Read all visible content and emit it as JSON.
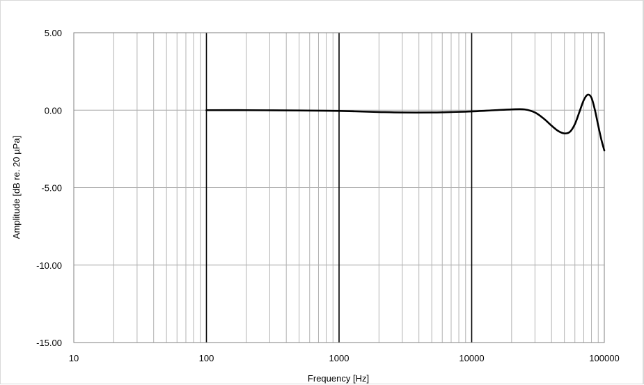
{
  "chart_data": {
    "type": "line",
    "title": "",
    "xlabel": "Frequency [Hz]",
    "ylabel": "Amplitude [dB re. 20 µPa]",
    "xscale": "log",
    "xlim": [
      10,
      100000
    ],
    "ylim": [
      -15,
      5
    ],
    "x_tick_labels": [
      "10",
      "100",
      "1000",
      "10000",
      "100000"
    ],
    "y_tick_labels": [
      "5.00",
      "0.00",
      "-5.00",
      "-10.00",
      "-15.00"
    ],
    "y_ticks": [
      5,
      0,
      -5,
      -10,
      -15
    ],
    "grid": true,
    "legend": "none",
    "series": [
      {
        "color": "#000000",
        "x": [
          100,
          200,
          500,
          1000,
          2000,
          3000,
          5000,
          7000,
          10000,
          15000,
          20000,
          25000,
          30000,
          35000,
          40000,
          45000,
          50000,
          55000,
          60000,
          65000,
          70000,
          75000,
          80000,
          85000,
          90000,
          95000,
          100000
        ],
        "y": [
          0.0,
          0.0,
          -0.02,
          -0.05,
          -0.12,
          -0.15,
          -0.15,
          -0.12,
          -0.08,
          0.0,
          0.05,
          0.05,
          -0.15,
          -0.55,
          -1.0,
          -1.35,
          -1.5,
          -1.4,
          -0.9,
          -0.1,
          0.65,
          1.0,
          0.8,
          0.0,
          -1.0,
          -1.9,
          -2.6
        ]
      }
    ]
  }
}
